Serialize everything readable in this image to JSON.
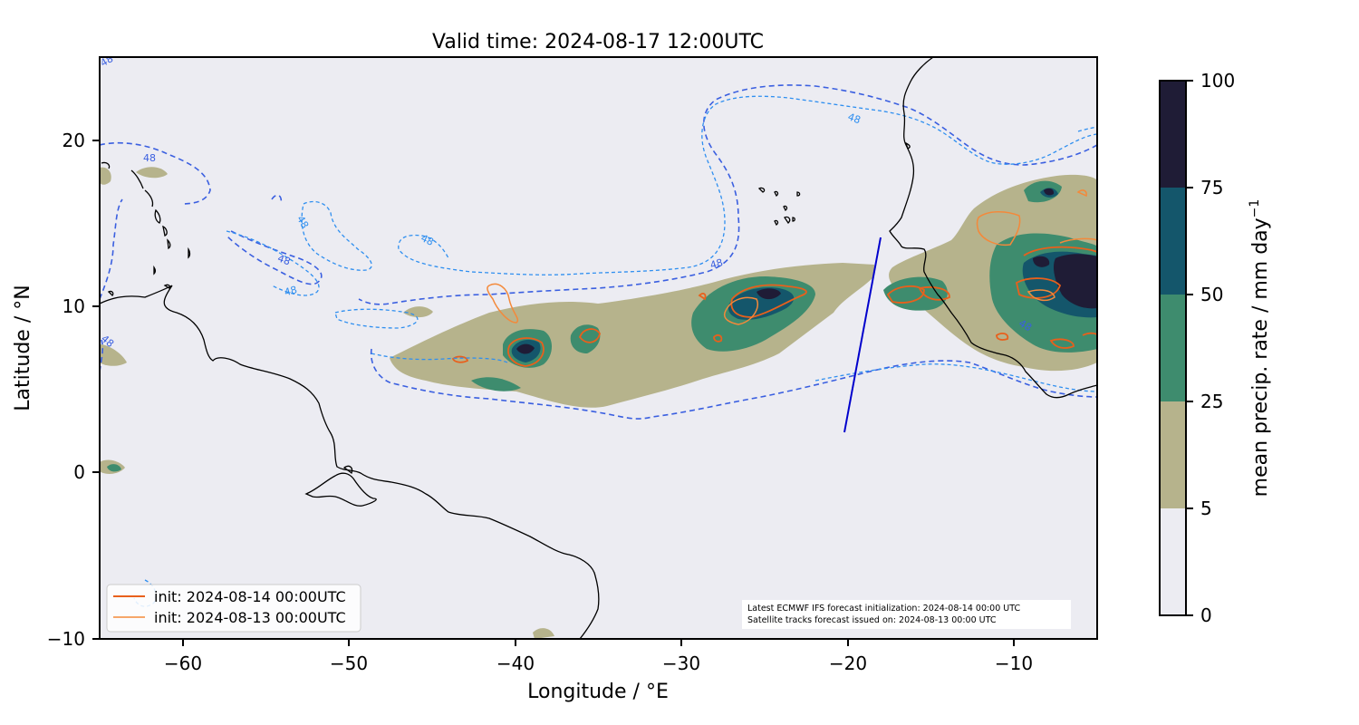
{
  "title": "Valid time: 2024-08-17 12:00UTC",
  "xlabel": "Longitude / °E",
  "ylabel": "Latitude / °N",
  "x_ticks": [
    "−60",
    "−50",
    "−40",
    "−30",
    "−20",
    "−10"
  ],
  "y_ticks": [
    "20",
    "10",
    "0",
    "−10"
  ],
  "legend": [
    {
      "label": "init: 2024-08-14 00:00UTC",
      "color": "#e8601c"
    },
    {
      "label": "init: 2024-08-13 00:00UTC",
      "color": "#f4893a"
    }
  ],
  "info_box": {
    "line1": "Latest ECMWF IFS forecast initialization: 2024-08-14 00:00 UTC",
    "line2": "Satellite tracks forecast issued on: 2024-08-13 00:00 UTC"
  },
  "colorbar": {
    "label": "mean precip. rate / mm day",
    "label_superscript": "−1",
    "ticks": [
      "100",
      "75",
      "50",
      "25",
      "5",
      "0"
    ],
    "colors": [
      "#ececf2",
      "#b6b38c",
      "#3e8c6e",
      "#14566b",
      "#1f1c36"
    ]
  },
  "contour_value": "48",
  "chart_data": {
    "type": "heatmap",
    "title": "Valid time: 2024-08-17 12:00UTC",
    "xlabel": "Longitude / °E",
    "ylabel": "Latitude / °N",
    "xlim": [
      -65,
      -5
    ],
    "ylim": [
      -10,
      25
    ],
    "x_ticks": [
      -60,
      -50,
      -40,
      -30,
      -20,
      -10
    ],
    "y_ticks": [
      -10,
      0,
      10,
      20
    ],
    "colorbar_levels": [
      0,
      5,
      25,
      50,
      75,
      100
    ],
    "satellite_track": {
      "lon": [
        -20.2,
        -18.1
      ],
      "lat": [
        2.4,
        14.1
      ]
    },
    "contour_level": 48,
    "series": [
      {
        "name": "init: 2024-08-14 00:00UTC"
      },
      {
        "name": "init: 2024-08-13 00:00UTC"
      }
    ]
  }
}
